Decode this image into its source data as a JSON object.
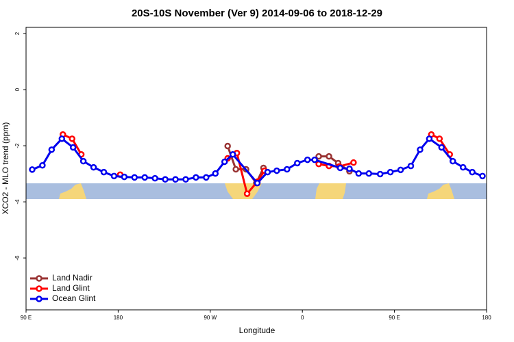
{
  "chart_data": {
    "type": "line",
    "title": "20S-10S November (Ver 9)   2014-09-06 to 2018-12-29",
    "xlabel": "Longitude",
    "ylabel": "XCO2 - MLO trend (ppm)",
    "xlim": [
      90,
      540
    ],
    "ylim": [
      -7.85,
      2.22
    ],
    "xticks": [
      {
        "value": 90,
        "label": "90 E"
      },
      {
        "value": 180,
        "label": "180"
      },
      {
        "value": 270,
        "label": "90 W"
      },
      {
        "value": 360,
        "label": "0"
      },
      {
        "value": 450,
        "label": "90 E"
      },
      {
        "value": 540,
        "label": "180"
      }
    ],
    "yticks": [
      2,
      0,
      -2,
      -4,
      -6
    ],
    "legend": "bottom-left",
    "series": [
      {
        "name": "Land Nadir",
        "color": "#993333",
        "x": [
          287,
          295,
          305,
          315,
          322,
          null,
          376,
          386,
          395,
          406
        ],
        "values": [
          -2.01,
          -2.84,
          -2.84,
          -3.33,
          -2.79,
          null,
          -2.38,
          -2.38,
          -2.62,
          -2.91
        ]
      },
      {
        "name": "Land Glint",
        "color": "#ff0000",
        "x": [
          126,
          135,
          144,
          null,
          182,
          null,
          287,
          296,
          306,
          316,
          323,
          null,
          376,
          386,
          396,
          410,
          null,
          486,
          494,
          504
        ],
        "values": [
          -1.6,
          -1.75,
          -2.31,
          null,
          -3.03,
          null,
          -2.45,
          -2.26,
          -3.71,
          -3.28,
          -2.89,
          null,
          -2.65,
          -2.72,
          -2.74,
          -2.6,
          null,
          -1.6,
          -1.75,
          -2.31
        ]
      },
      {
        "name": "Ocean Glint",
        "color": "#0000ee",
        "x": [
          96,
          106,
          115,
          125,
          136,
          146,
          156,
          166,
          176,
          186,
          196,
          206,
          216,
          226,
          236,
          246,
          256,
          266,
          275,
          284,
          292,
          316,
          326,
          335,
          345,
          355,
          365,
          372,
          397,
          406,
          415,
          425,
          436,
          446,
          456,
          466,
          475,
          484,
          496,
          507,
          517,
          526,
          536
        ],
        "values": [
          -2.85,
          -2.7,
          -2.14,
          -1.75,
          -2.06,
          -2.55,
          -2.77,
          -2.94,
          -3.08,
          -3.11,
          -3.13,
          -3.13,
          -3.16,
          -3.2,
          -3.2,
          -3.2,
          -3.13,
          -3.13,
          -2.99,
          -2.57,
          -2.31,
          -3.33,
          -2.94,
          -2.89,
          -2.84,
          -2.62,
          -2.5,
          -2.5,
          -2.79,
          -2.82,
          -2.99,
          -2.99,
          -3.01,
          -2.94,
          -2.86,
          -2.72,
          -2.14,
          -1.75,
          -2.06,
          -2.55,
          -2.77,
          -2.94,
          -3.08
        ]
      }
    ]
  }
}
